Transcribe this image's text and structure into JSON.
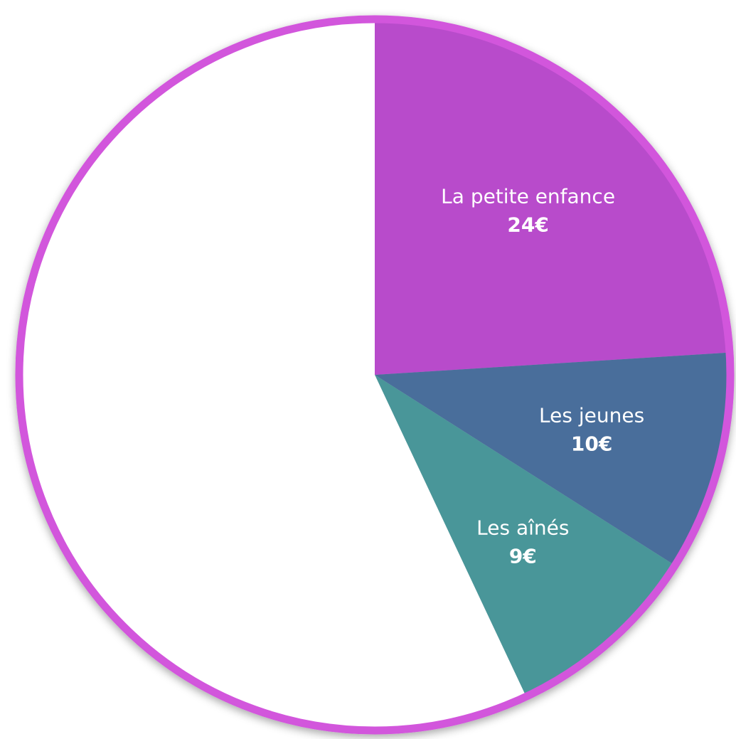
{
  "chart_data": {
    "type": "pie",
    "categories": [
      "La petite enfance",
      "Les jeunes",
      "Les aînés",
      null
    ],
    "values": [
      24,
      10,
      9,
      57
    ],
    "value_labels": [
      "24€",
      "10€",
      "9€",
      null
    ],
    "colors": [
      "#b84ccb",
      "#4a6e9b",
      "#4a9699",
      "#ffffff"
    ],
    "border_color": "#d257dc"
  }
}
